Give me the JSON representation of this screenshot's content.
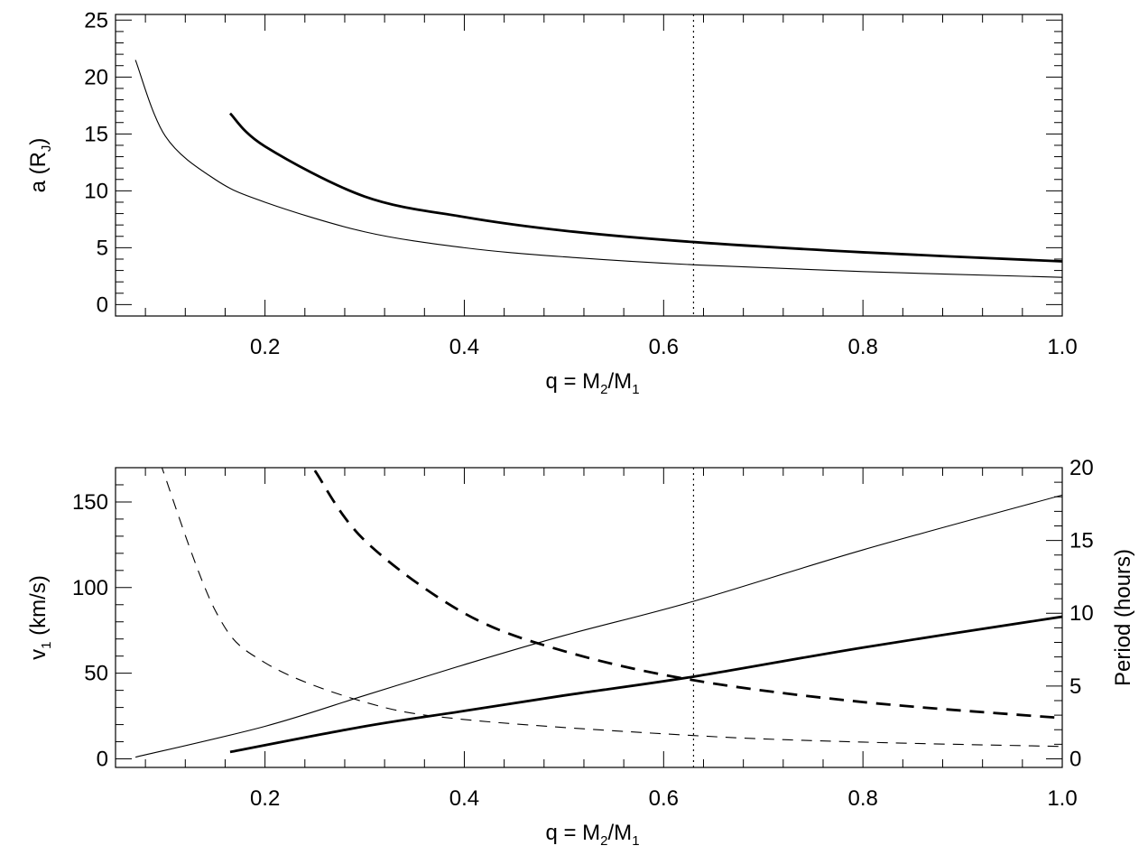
{
  "chart_data": [
    {
      "type": "line",
      "panel": "top",
      "xlabel": {
        "main": "q = M",
        "sub1": "2",
        "mid": "/M",
        "sub2": "1"
      },
      "ylabel": {
        "main": "a (R",
        "sub": "J",
        "end": ")"
      },
      "xlim": [
        0.05,
        1.0
      ],
      "ylim": [
        -1,
        25.5
      ],
      "xticks": [
        0.2,
        0.4,
        0.6,
        0.8,
        1.0
      ],
      "xtick_labels": [
        "0.2",
        "0.4",
        "0.6",
        "0.8",
        "1.0"
      ],
      "yticks": [
        0,
        5,
        10,
        15,
        20,
        25
      ],
      "ytick_labels": [
        "0",
        "5",
        "10",
        "15",
        "20",
        "25"
      ],
      "vline": 0.63,
      "grid": false,
      "series": [
        {
          "style": "thin-solid",
          "x": [
            0.07,
            0.1,
            0.15,
            0.2,
            0.3,
            0.4,
            0.5,
            0.63,
            0.8,
            1.0
          ],
          "values": [
            21.5,
            14.8,
            11.0,
            9.0,
            6.4,
            5.0,
            4.2,
            3.5,
            2.9,
            2.4
          ]
        },
        {
          "style": "thick-solid",
          "x": [
            0.165,
            0.2,
            0.3,
            0.4,
            0.5,
            0.63,
            0.8,
            1.0
          ],
          "values": [
            16.8,
            13.9,
            9.5,
            7.7,
            6.5,
            5.5,
            4.6,
            3.8
          ]
        }
      ]
    },
    {
      "type": "line",
      "panel": "bottom",
      "xlabel": {
        "main": "q = M",
        "sub1": "2",
        "mid": "/M",
        "sub2": "1"
      },
      "ylabel_left": {
        "main": "v",
        "sub": "1",
        "end": " (km/s)"
      },
      "ylabel_right": "Period (hours)",
      "xlim": [
        0.05,
        1.0
      ],
      "ylim_left": [
        -5,
        170
      ],
      "ylim_right": [
        -0.59,
        20
      ],
      "xticks": [
        0.2,
        0.4,
        0.6,
        0.8,
        1.0
      ],
      "xtick_labels": [
        "0.2",
        "0.4",
        "0.6",
        "0.8",
        "1.0"
      ],
      "yticks_left": [
        0,
        50,
        100,
        150
      ],
      "ytick_labels_left": [
        "0",
        "50",
        "100",
        "150"
      ],
      "yticks_right": [
        0,
        5,
        10,
        15,
        20
      ],
      "ytick_labels_right": [
        "0",
        "5",
        "10",
        "15",
        "20"
      ],
      "vline": 0.63,
      "grid": false,
      "series": [
        {
          "style": "thin-solid",
          "axis": "left",
          "x": [
            0.07,
            0.2,
            0.3,
            0.4,
            0.5,
            0.63,
            0.8,
            1.0
          ],
          "values": [
            1,
            19,
            37,
            55,
            72,
            92,
            122,
            154
          ]
        },
        {
          "style": "thick-solid",
          "axis": "left",
          "x": [
            0.165,
            0.3,
            0.4,
            0.5,
            0.63,
            0.8,
            1.0
          ],
          "values": [
            4,
            19,
            28,
            37,
            48,
            65,
            83
          ]
        },
        {
          "style": "thin-dashed",
          "axis": "right",
          "x": [
            0.095,
            0.15,
            0.2,
            0.3,
            0.4,
            0.63,
            0.8,
            1.0
          ],
          "values": [
            20.3,
            10.2,
            6.6,
            3.9,
            2.7,
            1.6,
            1.15,
            0.85
          ]
        },
        {
          "style": "thick-dashed",
          "axis": "right",
          "x": [
            0.25,
            0.3,
            0.4,
            0.5,
            0.63,
            0.8,
            1.0
          ],
          "values": [
            19.8,
            15.0,
            10.0,
            7.4,
            5.4,
            3.9,
            2.8
          ]
        }
      ]
    }
  ]
}
